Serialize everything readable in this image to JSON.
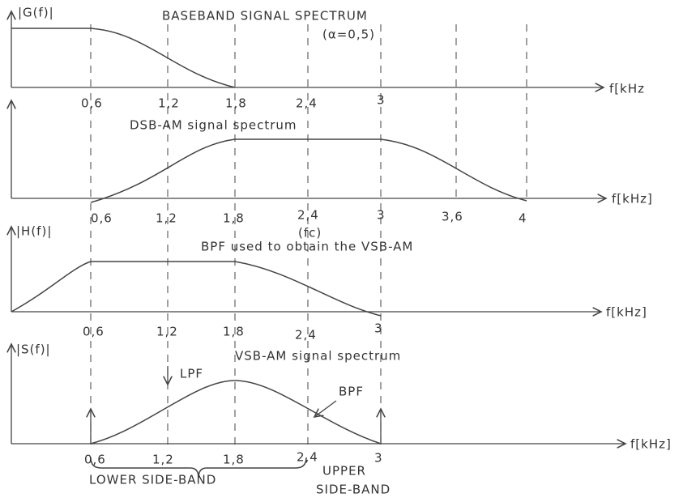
{
  "panels": [
    {
      "axis_label": "|G(f)|",
      "title": "BASEBAND SIGNAL SPECTRUM",
      "subtitle": "(α=0,5)",
      "x_axis_label": "f[kHz",
      "ticks": [
        "0,6",
        "1,2",
        "1,8",
        "2,4",
        "3"
      ]
    },
    {
      "title": "DSB-AM signal spectrum",
      "x_axis_label": "f[kHz]",
      "ticks": [
        "0,6",
        "1,2",
        "1,8",
        "2,4",
        "3",
        "3,6",
        "4"
      ],
      "annotation": "(fc)"
    },
    {
      "axis_label": "|H(f)|",
      "title": "BPF used to obtain the VSB-AM",
      "x_axis_label": "f[kHz]",
      "ticks": [
        "0,6",
        "1,2",
        "1,8",
        "2,4",
        "3"
      ]
    },
    {
      "axis_label": "|S(f)|",
      "title": "VSB-AM signal spectrum",
      "x_axis_label": "f[kHz]",
      "ticks": [
        "0,6",
        "1,2",
        "1,8",
        "2,4",
        "3"
      ],
      "lpf_label": "LPF",
      "bpf_label": "BPF",
      "lower_sideband": "LOWER SIDE-BAND",
      "upper_sideband": [
        "UPPER",
        "SIDE-BAND"
      ]
    }
  ]
}
